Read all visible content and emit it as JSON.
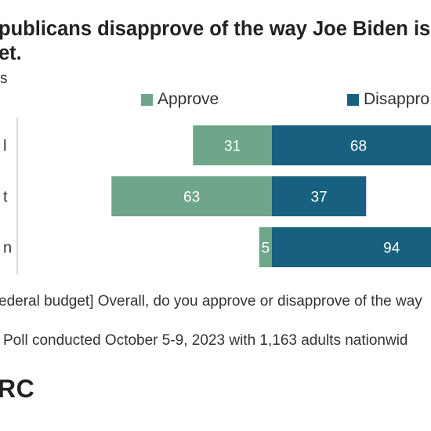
{
  "title": "publicans disapprove of the way Joe Biden is h",
  "title_line2": "et.",
  "subtitle": "s",
  "colors": {
    "approve": "#6fa68a",
    "disapprove": "#17607f",
    "axis": "#cccccc",
    "text": "#333333"
  },
  "chart_data": {
    "type": "bar",
    "orientation": "horizontal",
    "stacked": "diverging",
    "categories": [
      "l",
      "t",
      "n"
    ],
    "series": [
      {
        "name": "Approve",
        "values": [
          31,
          63,
          5
        ]
      },
      {
        "name": "Disappro",
        "values": [
          68,
          37,
          94
        ]
      }
    ],
    "legend": "top"
  },
  "note": "ederal budget] Overall, do you approve or disapprove of the way",
  "source": "Poll conducted October 5-9, 2023 with 1,163 adults nationwid",
  "logo": "RC"
}
